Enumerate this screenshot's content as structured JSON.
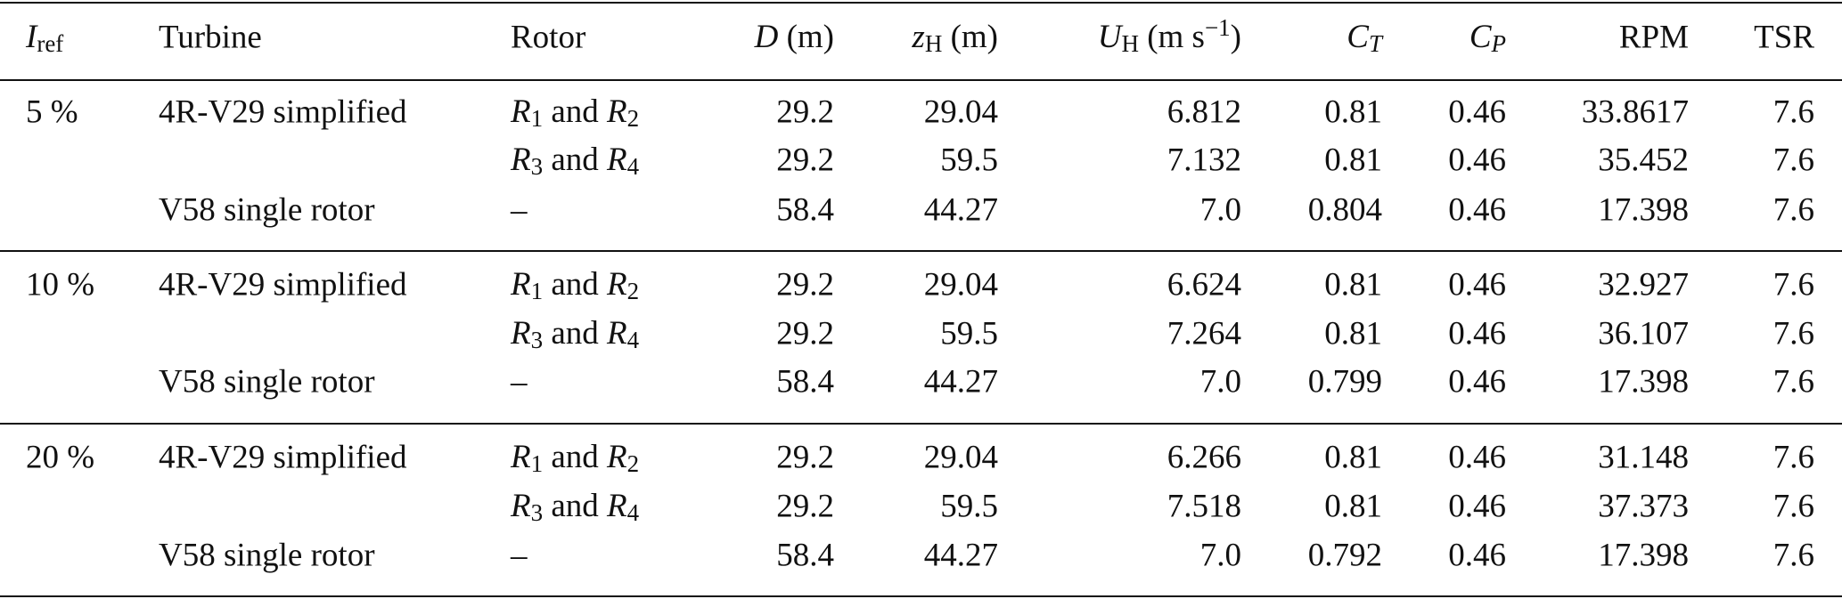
{
  "table": {
    "header": [
      [
        {
          "text": "I",
          "style": "italic"
        },
        {
          "text": "ref",
          "style": "sub"
        }
      ],
      "Turbine",
      "Rotor",
      [
        {
          "text": "D",
          "style": "italic"
        },
        {
          "text": " (m)",
          "style": "normal"
        }
      ],
      [
        {
          "text": "z",
          "style": "italic"
        },
        {
          "text": "H",
          "style": "sub"
        },
        {
          "text": " (m)",
          "style": "normal"
        }
      ],
      [
        {
          "text": "U",
          "style": "italic"
        },
        {
          "text": "H",
          "style": "sub"
        },
        {
          "text": " (m s",
          "style": "normal"
        },
        {
          "text": "−1",
          "style": "sup"
        },
        {
          "text": ")",
          "style": "normal"
        }
      ],
      [
        {
          "text": "C",
          "style": "italic"
        },
        {
          "text": "T",
          "style": "italic-sub"
        }
      ],
      [
        {
          "text": "C",
          "style": "italic"
        },
        {
          "text": "P",
          "style": "italic-sub"
        }
      ],
      "RPM",
      "TSR"
    ],
    "groups": [
      {
        "iref": "5 %",
        "rows": [
          {
            "turbine": "4R-V29 simplified",
            "rotor": [
              {
                "text": "R",
                "style": "italic"
              },
              {
                "text": "1",
                "style": "sub"
              },
              {
                "text": " and ",
                "style": "normal"
              },
              {
                "text": "R",
                "style": "italic"
              },
              {
                "text": "2",
                "style": "sub"
              }
            ],
            "cells": [
              "29.2",
              "29.04",
              "6.812",
              "0.81",
              "0.46",
              "33.8617",
              "7.6"
            ]
          },
          {
            "rotor": [
              {
                "text": "R",
                "style": "italic"
              },
              {
                "text": "3",
                "style": "sub"
              },
              {
                "text": " and ",
                "style": "normal"
              },
              {
                "text": "R",
                "style": "italic"
              },
              {
                "text": "4",
                "style": "sub"
              }
            ],
            "cells": [
              "29.2",
              "59.5",
              "7.132",
              "0.81",
              "0.46",
              "35.452",
              "7.6"
            ]
          },
          {
            "turbine": "V58 single rotor",
            "rotor": "–",
            "cells": [
              "58.4",
              "44.27",
              "7.0",
              "0.804",
              "0.46",
              "17.398",
              "7.6"
            ]
          }
        ]
      },
      {
        "iref": "10 %",
        "rows": [
          {
            "turbine": "4R-V29 simplified",
            "rotor": [
              {
                "text": "R",
                "style": "italic"
              },
              {
                "text": "1",
                "style": "sub"
              },
              {
                "text": " and ",
                "style": "normal"
              },
              {
                "text": "R",
                "style": "italic"
              },
              {
                "text": "2",
                "style": "sub"
              }
            ],
            "cells": [
              "29.2",
              "29.04",
              "6.624",
              "0.81",
              "0.46",
              "32.927",
              "7.6"
            ]
          },
          {
            "rotor": [
              {
                "text": "R",
                "style": "italic"
              },
              {
                "text": "3",
                "style": "sub"
              },
              {
                "text": " and ",
                "style": "normal"
              },
              {
                "text": "R",
                "style": "italic"
              },
              {
                "text": "4",
                "style": "sub"
              }
            ],
            "cells": [
              "29.2",
              "59.5",
              "7.264",
              "0.81",
              "0.46",
              "36.107",
              "7.6"
            ]
          },
          {
            "turbine": "V58 single rotor",
            "rotor": "–",
            "cells": [
              "58.4",
              "44.27",
              "7.0",
              "0.799",
              "0.46",
              "17.398",
              "7.6"
            ]
          }
        ]
      },
      {
        "iref": "20 %",
        "rows": [
          {
            "turbine": "4R-V29 simplified",
            "rotor": [
              {
                "text": "R",
                "style": "italic"
              },
              {
                "text": "1",
                "style": "sub"
              },
              {
                "text": " and ",
                "style": "normal"
              },
              {
                "text": "R",
                "style": "italic"
              },
              {
                "text": "2",
                "style": "sub"
              }
            ],
            "cells": [
              "29.2",
              "29.04",
              "6.266",
              "0.81",
              "0.46",
              "31.148",
              "7.6"
            ]
          },
          {
            "rotor": [
              {
                "text": "R",
                "style": "italic"
              },
              {
                "text": "3",
                "style": "sub"
              },
              {
                "text": " and ",
                "style": "normal"
              },
              {
                "text": "R",
                "style": "italic"
              },
              {
                "text": "4",
                "style": "sub"
              }
            ],
            "cells": [
              "29.2",
              "59.5",
              "7.518",
              "0.81",
              "0.46",
              "37.373",
              "7.6"
            ]
          },
          {
            "turbine": "V58 single rotor",
            "rotor": "–",
            "cells": [
              "58.4",
              "44.27",
              "7.0",
              "0.792",
              "0.46",
              "17.398",
              "7.6"
            ]
          }
        ]
      }
    ]
  }
}
